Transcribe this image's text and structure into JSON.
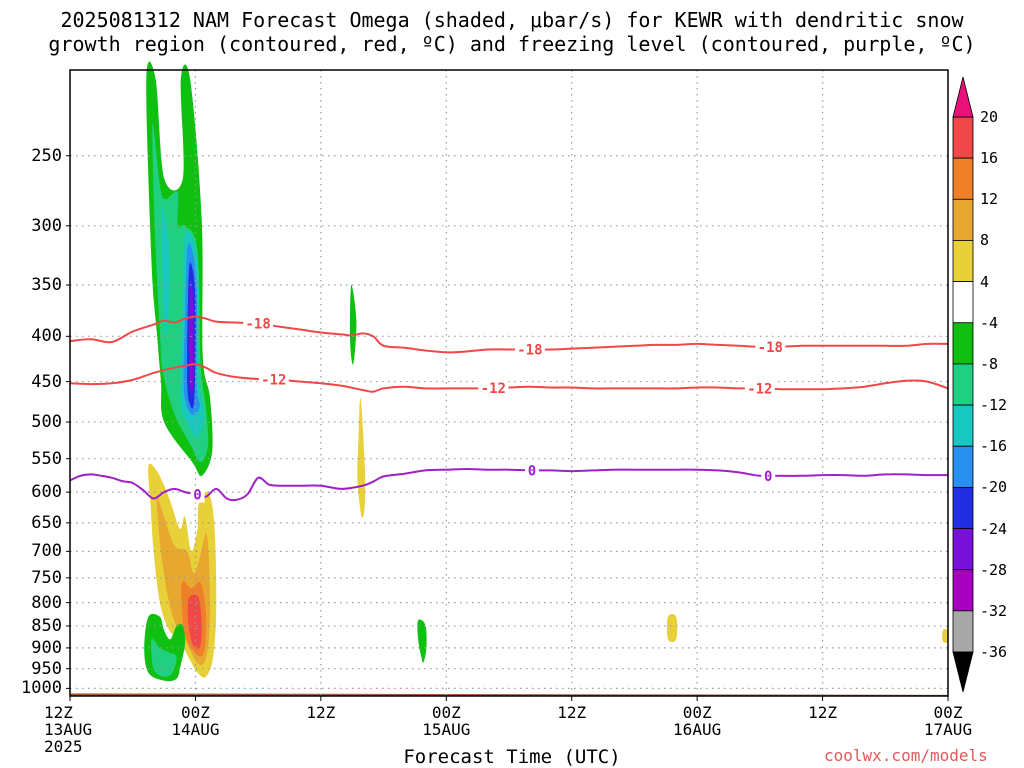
{
  "title": {
    "line1": "2025081312 NAM Forecast Omega (shaded, μbar/s) for KEWR with dendritic snow",
    "line2": "growth region (contoured, red, ºC) and freezing level (contoured, purple, ºC)"
  },
  "credit": "coolwx.com/models",
  "colors": {
    "dendritic_contour": "#f04848",
    "freezing_contour": "#a020c8",
    "ground": "#a85a30",
    "grid": "#9a9a9a"
  },
  "chart_data": {
    "type": "heatmap",
    "xlabel": "Forecast Time (UTC)",
    "ylabel": "",
    "x_unit": "forecast hours from 2025-08-13 12Z",
    "xlim": [
      0,
      84
    ],
    "y_unit": "hPa",
    "ylim": [
      1020,
      200
    ],
    "y_scale": "log",
    "yticks": [
      250,
      300,
      350,
      400,
      450,
      500,
      550,
      600,
      650,
      700,
      750,
      800,
      850,
      900,
      950,
      1000
    ],
    "xticks": [
      {
        "hour": 0,
        "label": "12Z",
        "sub": "13AUG",
        "sub2": "2025"
      },
      {
        "hour": 12,
        "label": "00Z",
        "sub": "14AUG",
        "sub2": ""
      },
      {
        "hour": 24,
        "label": "12Z",
        "sub": "",
        "sub2": ""
      },
      {
        "hour": 36,
        "label": "00Z",
        "sub": "15AUG",
        "sub2": ""
      },
      {
        "hour": 48,
        "label": "12Z",
        "sub": "",
        "sub2": ""
      },
      {
        "hour": 60,
        "label": "00Z",
        "sub": "16AUG",
        "sub2": ""
      },
      {
        "hour": 72,
        "label": "12Z",
        "sub": "",
        "sub2": ""
      },
      {
        "hour": 84,
        "label": "00Z",
        "sub": "17AUG",
        "sub2": ""
      }
    ],
    "colorbar": {
      "labels": [
        "20",
        "16",
        "12",
        "8",
        "4",
        "-4",
        "-8",
        "-12",
        "-16",
        "-20",
        "-24",
        "-28",
        "-32",
        "-36"
      ],
      "colors": [
        "#f04848",
        "#f08028",
        "#e8a830",
        "#e8d038",
        "#ffffff",
        "#10c010",
        "#20d080",
        "#18c8c0",
        "#2890f0",
        "#2030e0",
        "#7810d8",
        "#a800c0",
        "#a8a8a8"
      ],
      "over_color": "#e8127a",
      "under_color": "#000000"
    },
    "shaded_regions": [
      {
        "omega": -8,
        "color": "#10c010",
        "points": [
          [
            7.3,
            205
          ],
          [
            8.2,
            205
          ],
          [
            9.0,
            265
          ],
          [
            10.8,
            265
          ],
          [
            10.6,
            205
          ],
          [
            11.5,
            205
          ],
          [
            12.6,
            295
          ],
          [
            12.7,
            420
          ],
          [
            13.4,
            470
          ],
          [
            13.6,
            540
          ],
          [
            12.6,
            575
          ],
          [
            11.7,
            555
          ],
          [
            9.0,
            500
          ],
          [
            8.7,
            450
          ],
          [
            8.3,
            395
          ],
          [
            7.8,
            330
          ]
        ]
      },
      {
        "omega": -12,
        "color": "#20d080",
        "points": [
          [
            7.9,
            230
          ],
          [
            8.6,
            270
          ],
          [
            9.1,
            280
          ],
          [
            10.3,
            275
          ],
          [
            10.3,
            300
          ],
          [
            11.0,
            300
          ],
          [
            12.2,
            320
          ],
          [
            12.5,
            430
          ],
          [
            13.0,
            480
          ],
          [
            13.2,
            530
          ],
          [
            12.5,
            555
          ],
          [
            11.5,
            530
          ],
          [
            10.0,
            490
          ],
          [
            8.9,
            440
          ],
          [
            8.6,
            395
          ],
          [
            8.1,
            300
          ]
        ]
      },
      {
        "omega": -12,
        "color": "#18c8c0",
        "points": [
          [
            8.8,
            285
          ],
          [
            9.4,
            310
          ],
          [
            9.5,
            350
          ],
          [
            9.3,
            400
          ],
          [
            9.0,
            380
          ],
          [
            8.8,
            320
          ]
        ]
      },
      {
        "omega": -16,
        "color": "#18c8c0",
        "points": [
          [
            11.1,
            305
          ],
          [
            12.2,
            330
          ],
          [
            12.3,
            440
          ],
          [
            12.8,
            490
          ],
          [
            12.2,
            520
          ],
          [
            11.2,
            500
          ],
          [
            10.6,
            470
          ],
          [
            10.8,
            360
          ]
        ]
      },
      {
        "omega": -20,
        "color": "#2890f0",
        "points": [
          [
            11.3,
            315
          ],
          [
            12.1,
            345
          ],
          [
            12.1,
            450
          ],
          [
            12.4,
            480
          ],
          [
            11.6,
            490
          ],
          [
            10.9,
            460
          ],
          [
            11.0,
            380
          ]
        ]
      },
      {
        "omega": -24,
        "color": "#2030e0",
        "points": [
          [
            11.5,
            330
          ],
          [
            12.0,
            360
          ],
          [
            11.9,
            470
          ],
          [
            11.4,
            475
          ],
          [
            11.2,
            440
          ],
          [
            11.3,
            360
          ]
        ]
      },
      {
        "omega": -28,
        "color": "#7810d8",
        "points": [
          [
            11.6,
            345
          ],
          [
            11.85,
            380
          ],
          [
            11.8,
            455
          ],
          [
            11.45,
            455
          ],
          [
            11.4,
            420
          ],
          [
            11.45,
            370
          ]
        ]
      },
      {
        "omega": -32,
        "color": "#a800c0",
        "points": [
          [
            11.65,
            380
          ],
          [
            11.7,
            440
          ],
          [
            11.55,
            440
          ],
          [
            11.55,
            400
          ]
        ]
      },
      {
        "omega": -8,
        "color": "#10c010",
        "points": [
          [
            26.9,
            350
          ],
          [
            27.4,
            385
          ],
          [
            27.1,
            430
          ],
          [
            26.8,
            405
          ]
        ]
      },
      {
        "omega": 8,
        "color": "#e8d038",
        "points": [
          [
            7.5,
            560
          ],
          [
            8.4,
            570
          ],
          [
            9.5,
            610
          ],
          [
            10.5,
            660
          ],
          [
            11.0,
            640
          ],
          [
            11.6,
            700
          ],
          [
            12.2,
            660
          ],
          [
            12.3,
            620
          ],
          [
            13.2,
            600
          ],
          [
            13.8,
            650
          ],
          [
            14.0,
            800
          ],
          [
            13.7,
            920
          ],
          [
            13.0,
            970
          ],
          [
            12.2,
            960
          ],
          [
            11.5,
            930
          ],
          [
            10.3,
            875
          ],
          [
            9.5,
            860
          ],
          [
            8.6,
            800
          ],
          [
            8.0,
            700
          ],
          [
            7.7,
            620
          ]
        ]
      },
      {
        "omega": 12,
        "color": "#e8a830",
        "points": [
          [
            8.3,
            610
          ],
          [
            9.0,
            640
          ],
          [
            10.0,
            690
          ],
          [
            11.2,
            700
          ],
          [
            11.8,
            740
          ],
          [
            12.3,
            720
          ],
          [
            13.1,
            670
          ],
          [
            13.4,
            800
          ],
          [
            13.2,
            900
          ],
          [
            12.7,
            940
          ],
          [
            12.0,
            930
          ],
          [
            11.0,
            880
          ],
          [
            10.0,
            840
          ],
          [
            9.3,
            780
          ],
          [
            8.7,
            700
          ]
        ]
      },
      {
        "omega": 16,
        "color": "#f08028",
        "points": [
          [
            10.7,
            760
          ],
          [
            11.6,
            770
          ],
          [
            12.5,
            760
          ],
          [
            13.0,
            820
          ],
          [
            12.9,
            900
          ],
          [
            12.4,
            920
          ],
          [
            11.6,
            900
          ],
          [
            10.9,
            860
          ]
        ]
      },
      {
        "omega": 20,
        "color": "#f04848",
        "points": [
          [
            11.4,
            790
          ],
          [
            12.3,
            790
          ],
          [
            12.6,
            850
          ],
          [
            12.4,
            900
          ],
          [
            11.7,
            890
          ],
          [
            11.3,
            840
          ]
        ]
      },
      {
        "omega": 8,
        "color": "#e8d038",
        "points": [
          [
            27.8,
            470
          ],
          [
            28.2,
            560
          ],
          [
            28.2,
            620
          ],
          [
            27.9,
            640
          ],
          [
            27.5,
            580
          ],
          [
            27.6,
            520
          ]
        ]
      },
      {
        "omega": 8,
        "color": "#e8d038",
        "points": [
          [
            57.2,
            830
          ],
          [
            58.0,
            830
          ],
          [
            58.0,
            880
          ],
          [
            57.2,
            880
          ]
        ]
      },
      {
        "omega": 8,
        "color": "#e8d038",
        "points": [
          [
            83.5,
            860
          ],
          [
            84,
            860
          ],
          [
            84,
            885
          ],
          [
            83.5,
            885
          ]
        ]
      },
      {
        "omega": -8,
        "color": "#10c010",
        "points": [
          [
            7.5,
            830
          ],
          [
            8.6,
            830
          ],
          [
            9.0,
            860
          ],
          [
            9.6,
            880
          ],
          [
            10.2,
            850
          ],
          [
            10.8,
            850
          ],
          [
            11.0,
            890
          ],
          [
            10.6,
            940
          ],
          [
            10.2,
            975
          ],
          [
            9.0,
            980
          ],
          [
            7.5,
            960
          ],
          [
            7.1,
            900
          ]
        ]
      },
      {
        "omega": -12,
        "color": "#20d080",
        "points": [
          [
            7.8,
            880
          ],
          [
            8.6,
            900
          ],
          [
            9.4,
            910
          ],
          [
            10.2,
            920
          ],
          [
            9.8,
            960
          ],
          [
            9.0,
            970
          ],
          [
            8.0,
            950
          ]
        ]
      },
      {
        "omega": -8,
        "color": "#10c010",
        "points": [
          [
            33.3,
            838
          ],
          [
            34.0,
            848
          ],
          [
            34.1,
            900
          ],
          [
            33.8,
            935
          ],
          [
            33.6,
            920
          ],
          [
            33.3,
            880
          ]
        ]
      }
    ],
    "ground": {
      "top_hpa": [
        [
          0,
          1013
        ],
        [
          84,
          1017
        ]
      ]
    },
    "contours": [
      {
        "label": "-18",
        "type": "dendritic",
        "label_hours": [
          18.0,
          44.0,
          67.0
        ],
        "x": [
          0,
          2,
          4,
          6,
          8,
          9,
          10,
          11,
          12,
          13,
          14,
          16,
          18,
          20,
          22,
          24,
          26,
          27,
          28,
          29,
          30,
          32,
          34,
          36,
          38,
          40,
          42,
          44,
          46,
          48,
          50,
          52,
          54,
          56,
          58,
          60,
          62,
          64,
          66,
          68,
          70,
          72,
          74,
          76,
          78,
          80,
          82,
          84
        ],
        "y": [
          405,
          403,
          406,
          395,
          388,
          384,
          386,
          382,
          380,
          382,
          385,
          386,
          387,
          390,
          393,
          396,
          398,
          399,
          397,
          400,
          410,
          412,
          415,
          417,
          416,
          414,
          414,
          414,
          414,
          413,
          412,
          411,
          410,
          409,
          409,
          408,
          409,
          410,
          411,
          411,
          410,
          410,
          410,
          410,
          410,
          410,
          408,
          408
        ]
      },
      {
        "label": "-12",
        "type": "dendritic",
        "label_hours": [
          19.5,
          40.5,
          66.0
        ],
        "x": [
          0,
          2,
          4,
          6,
          8,
          10,
          11,
          12,
          13,
          14,
          16,
          18,
          20,
          22,
          24,
          26,
          28,
          29,
          30,
          32,
          34,
          36,
          38,
          40,
          42,
          44,
          46,
          48,
          50,
          52,
          54,
          56,
          58,
          60,
          62,
          64,
          66,
          68,
          70,
          72,
          74,
          76,
          78,
          80,
          82,
          84
        ],
        "y": [
          452,
          453,
          452,
          448,
          440,
          434,
          432,
          430,
          434,
          440,
          445,
          447,
          448,
          450,
          452,
          455,
          460,
          462,
          458,
          456,
          458,
          458,
          458,
          458,
          457,
          456,
          457,
          457,
          458,
          458,
          458,
          458,
          458,
          457,
          457,
          458,
          458,
          459,
          459,
          459,
          458,
          456,
          452,
          449,
          450,
          458
        ]
      },
      {
        "label": "0",
        "type": "freezing",
        "label_hours": [
          12.2,
          44.2,
          66.8
        ],
        "x": [
          0,
          1,
          2,
          3,
          4,
          5,
          6,
          7,
          8,
          9,
          10,
          11,
          12,
          13,
          14,
          15,
          16,
          17,
          18,
          19,
          20,
          22,
          24,
          26,
          28,
          29,
          30,
          32,
          34,
          36,
          38,
          40,
          42,
          44,
          46,
          48,
          50,
          52,
          54,
          56,
          58,
          60,
          62,
          64,
          66,
          68,
          70,
          72,
          74,
          76,
          78,
          80,
          82,
          84
        ],
        "y": [
          582,
          575,
          573,
          575,
          578,
          583,
          586,
          597,
          610,
          600,
          595,
          600,
          603,
          607,
          595,
          610,
          612,
          603,
          578,
          588,
          590,
          590,
          590,
          595,
          590,
          584,
          576,
          572,
          567,
          566,
          565,
          566,
          566,
          567,
          567,
          568,
          567,
          566,
          566,
          566,
          566,
          566,
          567,
          570,
          575,
          575,
          575,
          574,
          574,
          575,
          573,
          573,
          574,
          574
        ]
      }
    ]
  }
}
